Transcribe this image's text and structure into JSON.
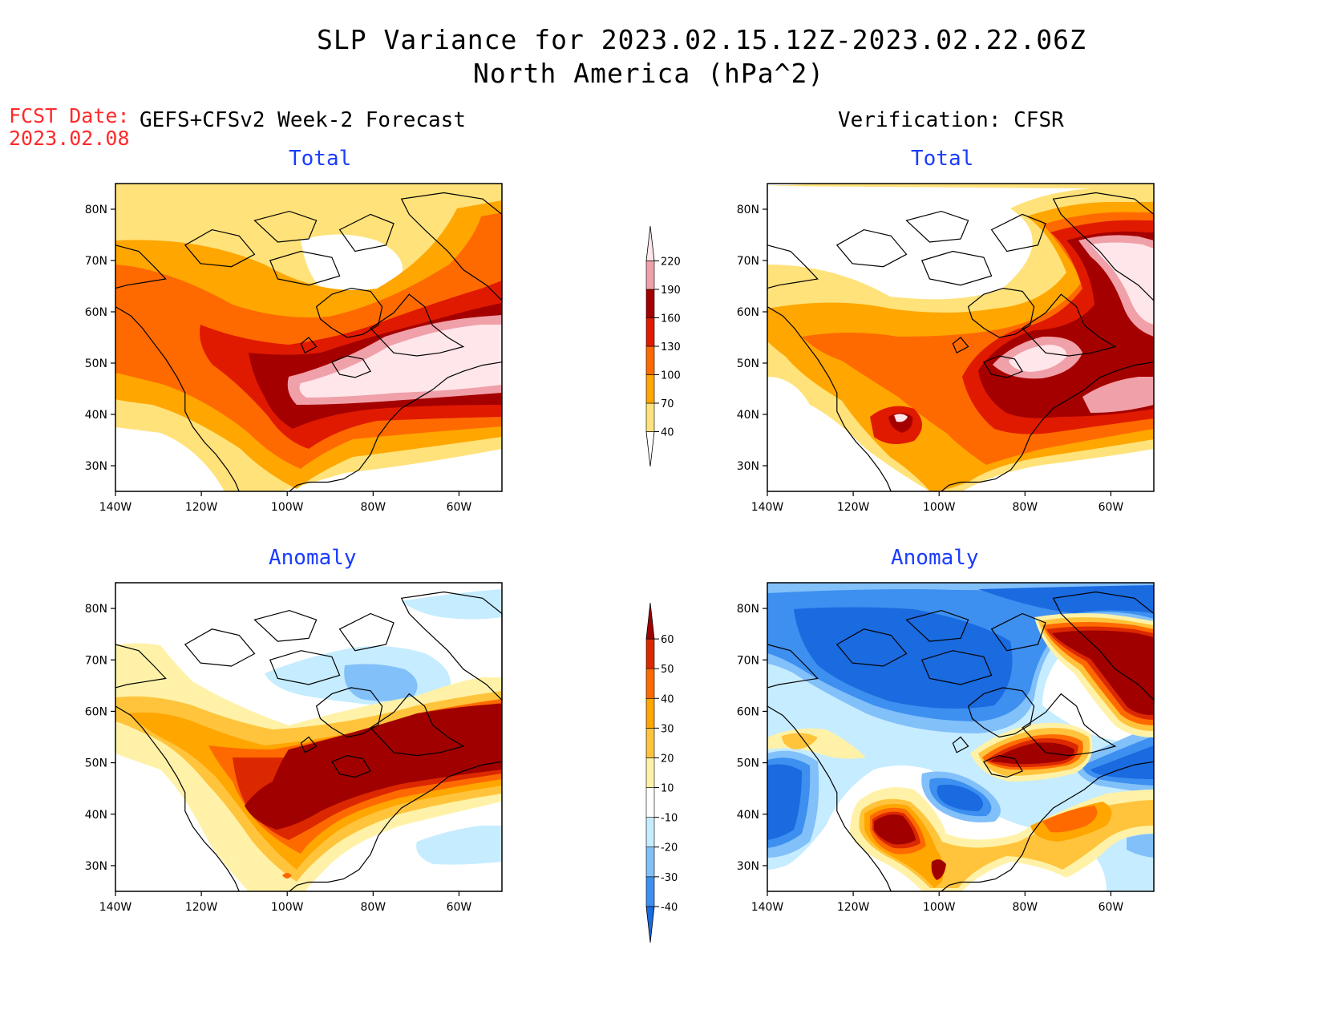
{
  "title": {
    "line1": "SLP Variance for 2023.02.15.12Z-2023.02.22.06Z",
    "line2": "North America (hPa^2)"
  },
  "fcst_date": {
    "label": "FCST Date:",
    "value": "2023.02.08"
  },
  "column_headers": {
    "left": "GEFS+CFSv2 Week-2 Forecast",
    "right": "Verification: CFSR"
  },
  "panels": [
    {
      "id": "fcst-total",
      "title": "Total"
    },
    {
      "id": "cfsr-total",
      "title": "Total"
    },
    {
      "id": "fcst-anomaly",
      "title": "Anomaly"
    },
    {
      "id": "cfsr-anomaly",
      "title": "Anomaly"
    }
  ],
  "axes": {
    "lon_ticks": [
      "140W",
      "120W",
      "100W",
      "80W",
      "60W"
    ],
    "lat_ticks": [
      "80N",
      "70N",
      "60N",
      "50N",
      "40N",
      "30N"
    ],
    "lon_range": [
      -140,
      -50
    ],
    "lat_range": [
      25,
      85
    ]
  },
  "colorbars": {
    "total": {
      "levels": [
        "40",
        "70",
        "100",
        "130",
        "160",
        "190",
        "220"
      ],
      "colors": [
        "#ffffff",
        "#ffe27a",
        "#ffa600",
        "#ff6a00",
        "#e01a00",
        "#a50000",
        "#f0a0a8",
        "#ffe6ea"
      ]
    },
    "anomaly": {
      "levels": [
        "-40",
        "-30",
        "-20",
        "-10",
        "10",
        "20",
        "30",
        "40",
        "50",
        "60"
      ],
      "colors": [
        "#1a6ae0",
        "#3d8ff0",
        "#82c0fa",
        "#c6ecff",
        "#ffffff",
        "#fff2a8",
        "#ffc43c",
        "#ffa600",
        "#ff6a00",
        "#dc2800",
        "#a00000"
      ]
    }
  }
}
